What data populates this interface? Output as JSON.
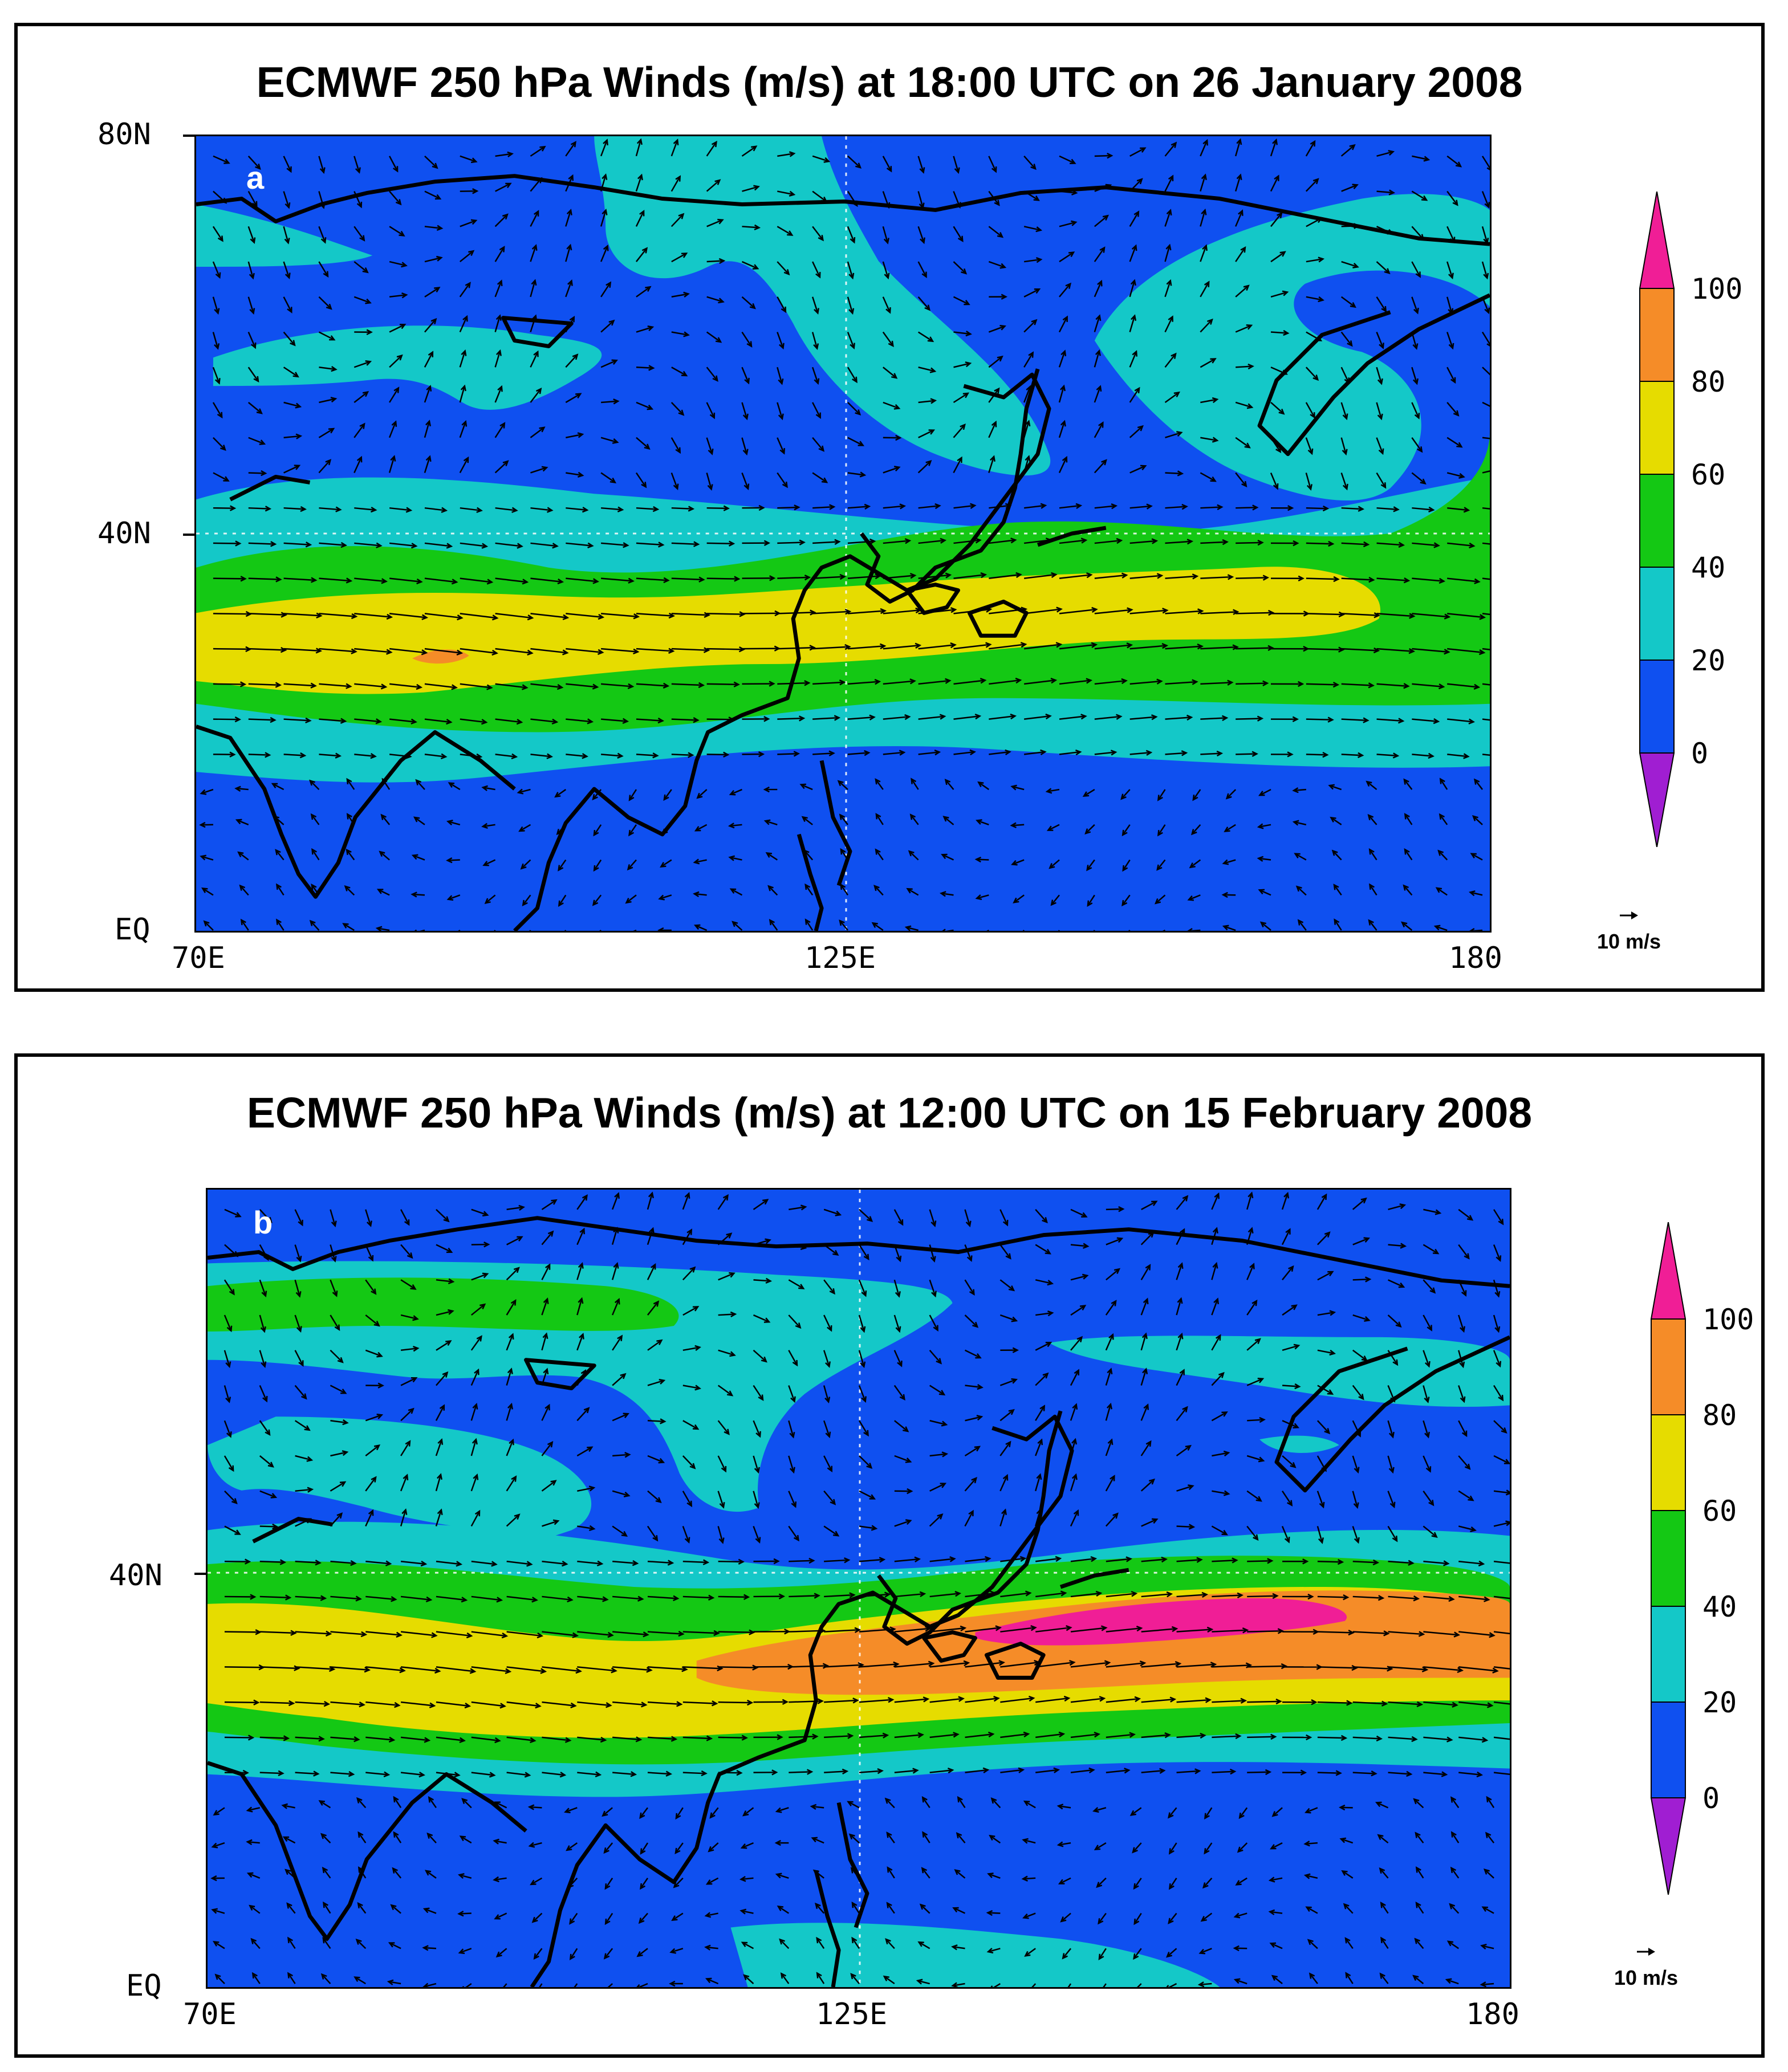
{
  "panels": [
    {
      "letter": "a",
      "title": "ECMWF 250 hPa Winds (m/s) at 18:00 UTC on 26 January 2008",
      "lat_labels": [
        "80N",
        "40N",
        "EQ"
      ],
      "lon_labels": [
        "70E",
        "125E",
        "180"
      ],
      "colorbar_labels": [
        "100",
        "80",
        "60",
        "40",
        "20",
        "0"
      ],
      "ref_vector": "10 m/s"
    },
    {
      "letter": "b",
      "title": "ECMWF 250 hPa Winds (m/s) at 12:00 UTC on 15 February 2008",
      "lat_labels": [
        "40N",
        "EQ"
      ],
      "lon_labels": [
        "70E",
        "125E",
        "180"
      ],
      "colorbar_labels": [
        "100",
        "80",
        "60",
        "40",
        "20",
        "0"
      ],
      "ref_vector": "10 m/s"
    }
  ],
  "colors": {
    "c0_20": "#0f50f0",
    "c20_40": "#14c8c8",
    "c40_60": "#14c814",
    "c60_80": "#e6dc00",
    "c80_100": "#f58c28",
    "c100": "#f01e96",
    "below0": "#a01ed2"
  }
}
